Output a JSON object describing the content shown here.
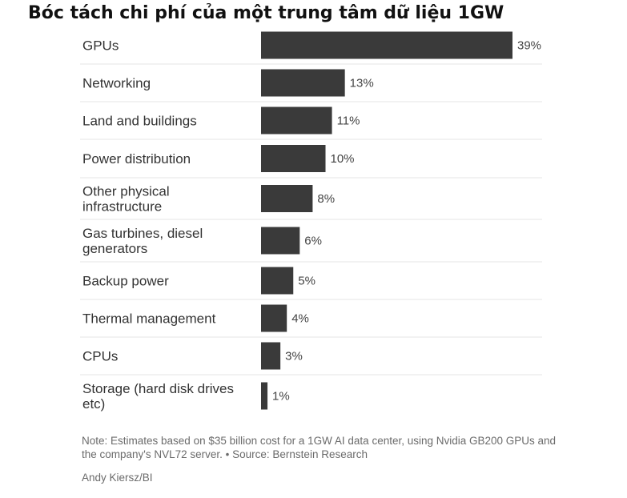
{
  "title": "Bóc tách chi phí của một trung tâm dữ liệu 1GW",
  "note": "Note: Estimates based on $35 billion cost for a 1GW AI data center, using Nvidia GB200 GPUs and the company's NVL72 server. • Source: Bernstein Research",
  "credit": "Andy Kiersz/BI",
  "colors": {
    "bar": "#3a3a3a",
    "divider": "#e6e6e6"
  },
  "chart_data": {
    "type": "bar",
    "orientation": "horizontal",
    "unit": "%",
    "categories": [
      "GPUs",
      "Networking",
      "Land and buildings",
      "Power distribution",
      "Other physical infrastructure",
      "Gas turbines, diesel generators",
      "Backup power",
      "Thermal management",
      "CPUs",
      "Storage (hard disk drives etc)"
    ],
    "category_lines": [
      [
        "GPUs"
      ],
      [
        "Networking"
      ],
      [
        "Land and buildings"
      ],
      [
        "Power distribution"
      ],
      [
        "Other physical",
        "infrastructure"
      ],
      [
        "Gas turbines, diesel",
        "generators"
      ],
      [
        "Backup power"
      ],
      [
        "Thermal management"
      ],
      [
        "CPUs"
      ],
      [
        "Storage (hard disk drives",
        "etc)"
      ]
    ],
    "values": [
      39,
      13,
      11,
      10,
      8,
      6,
      5,
      4,
      3,
      1
    ],
    "value_labels": [
      "39%",
      "13%",
      "11%",
      "10%",
      "8%",
      "6%",
      "5%",
      "4%",
      "3%",
      "1%"
    ],
    "xlim": [
      0,
      39
    ],
    "title": "Bóc tách chi phí của một trung tâm dữ liệu 1GW"
  }
}
